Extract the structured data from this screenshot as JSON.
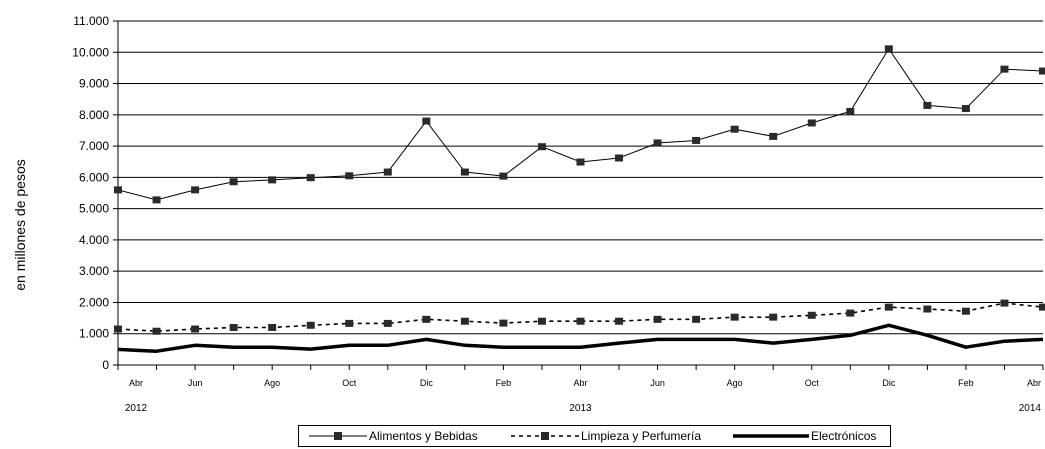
{
  "chart_data": {
    "type": "line",
    "ylabel": "en millones de pesos",
    "ylim": [
      0,
      11000
    ],
    "yticks": [
      "0",
      "1.000",
      "2.000",
      "3.000",
      "4.000",
      "5.000",
      "6.000",
      "7.000",
      "8.000",
      "9.000",
      "10.000",
      "11.000"
    ],
    "grid": "horizontal",
    "x_month_labels": [
      "Abr",
      "",
      "Jun",
      "",
      "Ago",
      "",
      "Oct",
      "",
      "Dic",
      "",
      "Feb",
      "",
      "Abr",
      "",
      "Jun",
      "",
      "Ago",
      "",
      "Oct",
      "",
      "Dic",
      "",
      "Feb",
      "",
      "Abr"
    ],
    "x_year_labels": [
      {
        "index": 0,
        "label": "2012"
      },
      {
        "index": 12,
        "label": "2013"
      },
      {
        "index": 24,
        "label": "2014"
      }
    ],
    "x": [
      "2012-04",
      "2012-05",
      "2012-06",
      "2012-07",
      "2012-08",
      "2012-09",
      "2012-10",
      "2012-11",
      "2012-12",
      "2013-01",
      "2013-02",
      "2013-03",
      "2013-04",
      "2013-05",
      "2013-06",
      "2013-07",
      "2013-08",
      "2013-09",
      "2013-10",
      "2013-11",
      "2013-12",
      "2014-01",
      "2014-02",
      "2014-03",
      "2014-04"
    ],
    "series": [
      {
        "name": "Alimentos y Bebidas",
        "style": "thin-solid-square-markers",
        "values": [
          5600,
          5280,
          5600,
          5860,
          5920,
          5990,
          6050,
          6170,
          7800,
          6170,
          6040,
          6980,
          6490,
          6620,
          7100,
          7180,
          7540,
          7310,
          7740,
          8110,
          10110,
          8300,
          8200,
          9460,
          9400
        ]
      },
      {
        "name": "Limpieza y Perfumería",
        "style": "dashed-square-markers",
        "values": [
          1150,
          1080,
          1150,
          1200,
          1200,
          1270,
          1330,
          1330,
          1460,
          1400,
          1340,
          1400,
          1400,
          1400,
          1460,
          1460,
          1530,
          1530,
          1590,
          1660,
          1850,
          1790,
          1720,
          1980,
          1850
        ]
      },
      {
        "name": "Electrónicos",
        "style": "thick-solid",
        "values": [
          500,
          440,
          630,
          570,
          570,
          510,
          630,
          630,
          820,
          630,
          570,
          570,
          570,
          700,
          820,
          820,
          820,
          700,
          820,
          950,
          1270,
          950,
          570,
          760,
          820
        ]
      }
    ]
  },
  "legend": {
    "item1": "Alimentos y Bebidas",
    "item2": "Limpieza y Perfumería",
    "item3": "Electrónicos"
  }
}
